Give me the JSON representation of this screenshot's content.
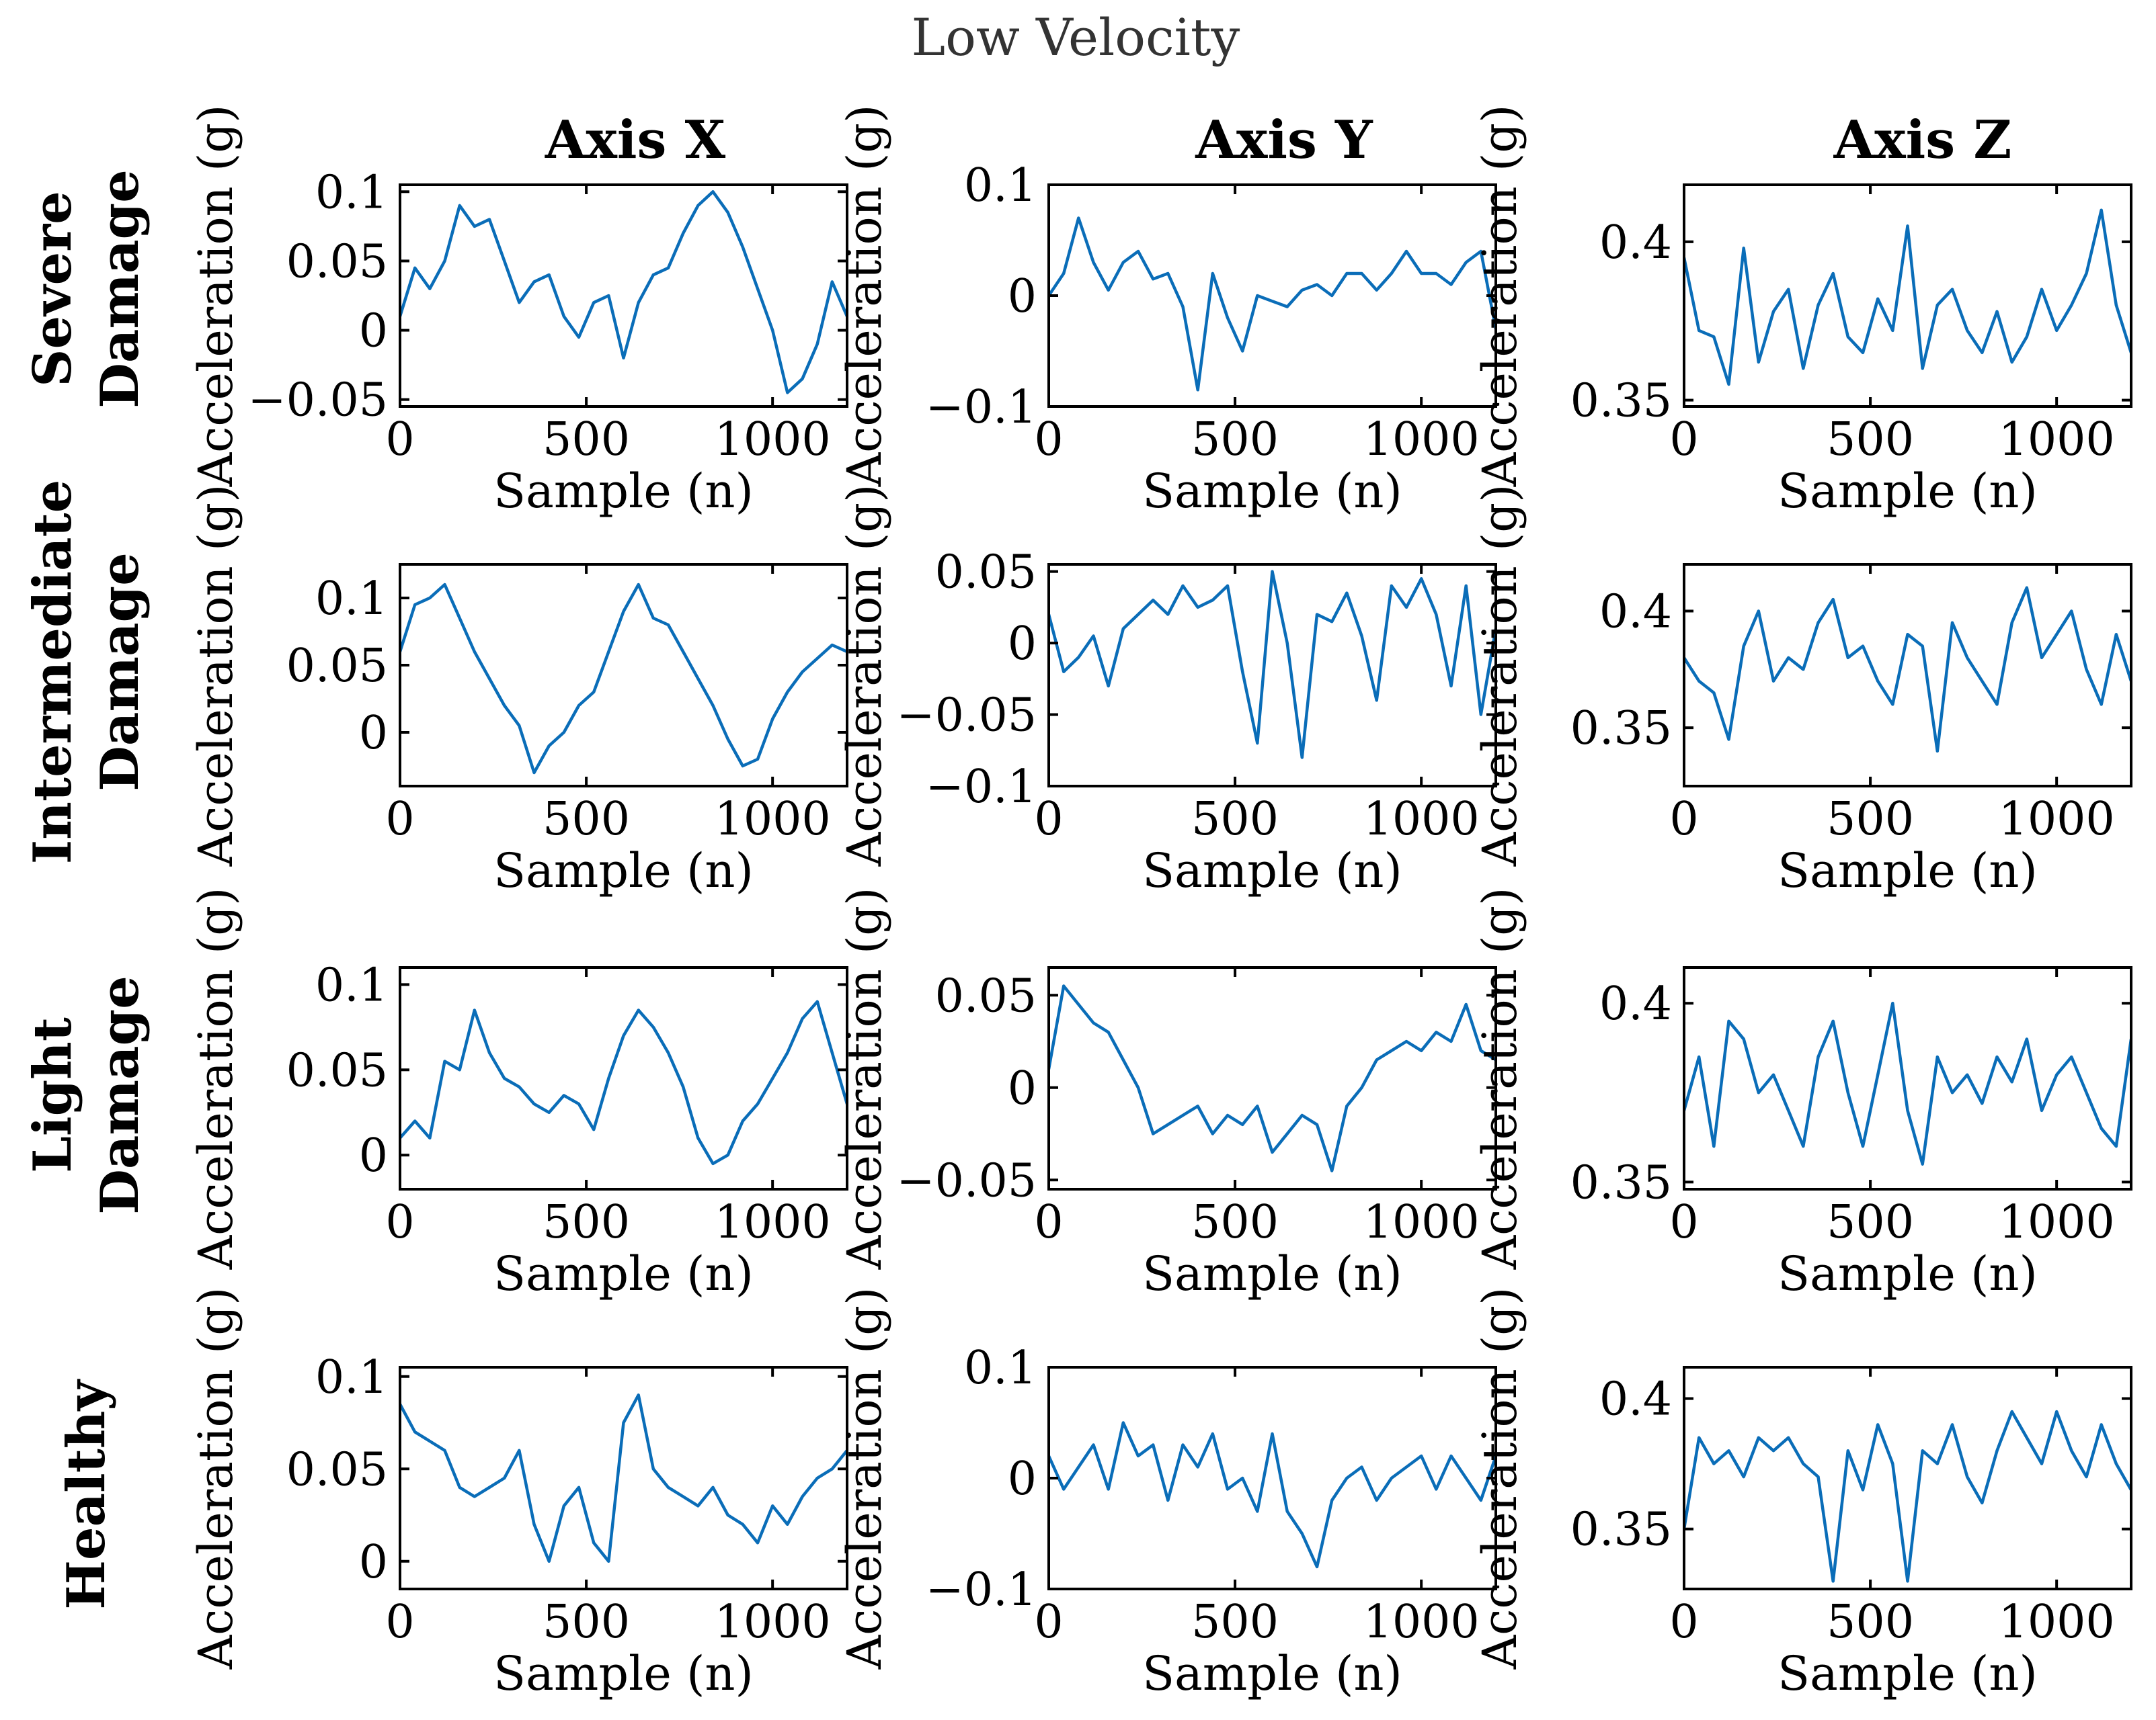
{
  "figure": {
    "title": "Low Velocity",
    "columns": [
      "Axis X",
      "Axis Y",
      "Axis Z"
    ],
    "rows": [
      {
        "line1": "Severe",
        "line2": "Damage"
      },
      {
        "line1": "Intermediate",
        "line2": "Damage"
      },
      {
        "line1": "Light",
        "line2": "Damage"
      },
      {
        "line1": "",
        "line2": "Healthy"
      }
    ],
    "series_color": "#0A6DB8"
  },
  "chart_data": [
    {
      "type": "line",
      "row": "Severe Damage",
      "column": "Axis X",
      "xlabel": "Sample (n)",
      "ylabel": "Acceleration (g)",
      "xlim": [
        0,
        1200
      ],
      "ylim": [
        -0.055,
        0.105
      ],
      "xticks": [
        0,
        500,
        1000
      ],
      "yticks": [
        -0.05,
        0,
        0.05,
        0.1
      ],
      "ytick_labels": [
        "−0.05",
        "0",
        "0.05",
        "0.1"
      ],
      "x": [
        0,
        40,
        80,
        120,
        160,
        200,
        240,
        280,
        320,
        360,
        400,
        440,
        480,
        520,
        560,
        600,
        640,
        680,
        720,
        760,
        800,
        840,
        880,
        920,
        960,
        1000,
        1040,
        1080,
        1120,
        1160,
        1200
      ],
      "values": [
        0.01,
        0.045,
        0.03,
        0.05,
        0.09,
        0.075,
        0.08,
        0.05,
        0.02,
        0.035,
        0.04,
        0.01,
        -0.005,
        0.02,
        0.025,
        -0.02,
        0.02,
        0.04,
        0.045,
        0.07,
        0.09,
        0.1,
        0.085,
        0.06,
        0.03,
        0.0,
        -0.045,
        -0.035,
        -0.01,
        0.035,
        0.01
      ]
    },
    {
      "type": "line",
      "row": "Severe Damage",
      "column": "Axis Y",
      "xlabel": "Sample (n)",
      "ylabel": "Acceleration (g)",
      "xlim": [
        0,
        1200
      ],
      "ylim": [
        -0.1,
        0.1
      ],
      "xticks": [
        0,
        500,
        1000
      ],
      "yticks": [
        -0.1,
        0,
        0.1
      ],
      "ytick_labels": [
        "−0.1",
        "0",
        "0.1"
      ],
      "x": [
        0,
        40,
        80,
        120,
        160,
        200,
        240,
        280,
        320,
        360,
        400,
        440,
        480,
        520,
        560,
        600,
        640,
        680,
        720,
        760,
        800,
        840,
        880,
        920,
        960,
        1000,
        1040,
        1080,
        1120,
        1160,
        1200
      ],
      "values": [
        0.0,
        0.02,
        0.07,
        0.03,
        0.005,
        0.03,
        0.04,
        0.015,
        0.02,
        -0.01,
        -0.085,
        0.02,
        -0.02,
        -0.05,
        0.0,
        -0.005,
        -0.01,
        0.005,
        0.01,
        0.0,
        0.02,
        0.02,
        0.005,
        0.02,
        0.04,
        0.02,
        0.02,
        0.01,
        0.03,
        0.04,
        -0.03
      ]
    },
    {
      "type": "line",
      "row": "Severe Damage",
      "column": "Axis Z",
      "xlabel": "Sample (n)",
      "ylabel": "Acceleration (g)",
      "xlim": [
        0,
        1200
      ],
      "ylim": [
        0.348,
        0.418
      ],
      "xticks": [
        0,
        500,
        1000
      ],
      "yticks": [
        0.35,
        0.4
      ],
      "ytick_labels": [
        "0.35",
        "0.4"
      ],
      "x": [
        0,
        40,
        80,
        120,
        160,
        200,
        240,
        280,
        320,
        360,
        400,
        440,
        480,
        520,
        560,
        600,
        640,
        680,
        720,
        760,
        800,
        840,
        880,
        920,
        960,
        1000,
        1040,
        1080,
        1120,
        1160,
        1200
      ],
      "values": [
        0.395,
        0.372,
        0.37,
        0.355,
        0.398,
        0.362,
        0.378,
        0.385,
        0.36,
        0.38,
        0.39,
        0.37,
        0.365,
        0.382,
        0.372,
        0.405,
        0.36,
        0.38,
        0.385,
        0.372,
        0.365,
        0.378,
        0.362,
        0.37,
        0.385,
        0.372,
        0.38,
        0.39,
        0.41,
        0.38,
        0.365
      ]
    },
    {
      "type": "line",
      "row": "Intermediate Damage",
      "column": "Axis X",
      "xlabel": "Sample (n)",
      "ylabel": "Acceleration (g)",
      "xlim": [
        0,
        1200
      ],
      "ylim": [
        -0.04,
        0.125
      ],
      "xticks": [
        0,
        500,
        1000
      ],
      "yticks": [
        0,
        0.05,
        0.1
      ],
      "ytick_labels": [
        "0",
        "0.05",
        "0.1"
      ],
      "x": [
        0,
        40,
        80,
        120,
        160,
        200,
        240,
        280,
        320,
        360,
        400,
        440,
        480,
        520,
        560,
        600,
        640,
        680,
        720,
        760,
        800,
        840,
        880,
        920,
        960,
        1000,
        1040,
        1080,
        1120,
        1160,
        1200
      ],
      "values": [
        0.06,
        0.095,
        0.1,
        0.11,
        0.085,
        0.06,
        0.04,
        0.02,
        0.005,
        -0.03,
        -0.01,
        0.0,
        0.02,
        0.03,
        0.06,
        0.09,
        0.11,
        0.085,
        0.08,
        0.06,
        0.04,
        0.02,
        -0.005,
        -0.025,
        -0.02,
        0.01,
        0.03,
        0.045,
        0.055,
        0.065,
        0.06
      ]
    },
    {
      "type": "line",
      "row": "Intermediate Damage",
      "column": "Axis Y",
      "xlabel": "Sample (n)",
      "ylabel": "Acceleration (g)",
      "xlim": [
        0,
        1200
      ],
      "ylim": [
        -0.1,
        0.055
      ],
      "xticks": [
        0,
        500,
        1000
      ],
      "yticks": [
        -0.1,
        -0.05,
        0,
        0.05
      ],
      "ytick_labels": [
        "−0.1",
        "−0.05",
        "0",
        "0.05"
      ],
      "x": [
        0,
        40,
        80,
        120,
        160,
        200,
        240,
        280,
        320,
        360,
        400,
        440,
        480,
        520,
        560,
        600,
        640,
        680,
        720,
        760,
        800,
        840,
        880,
        920,
        960,
        1000,
        1040,
        1080,
        1120,
        1160,
        1200
      ],
      "values": [
        0.02,
        -0.02,
        -0.01,
        0.005,
        -0.03,
        0.01,
        0.02,
        0.03,
        0.02,
        0.04,
        0.025,
        0.03,
        0.04,
        -0.02,
        -0.07,
        0.05,
        0.0,
        -0.08,
        0.02,
        0.015,
        0.035,
        0.005,
        -0.04,
        0.04,
        0.025,
        0.045,
        0.02,
        -0.03,
        0.04,
        -0.05,
        0.01
      ]
    },
    {
      "type": "line",
      "row": "Intermediate Damage",
      "column": "Axis Z",
      "xlabel": "Sample (n)",
      "ylabel": "Acceleration (g)",
      "xlim": [
        0,
        1200
      ],
      "ylim": [
        0.325,
        0.42
      ],
      "xticks": [
        0,
        500,
        1000
      ],
      "yticks": [
        0.35,
        0.4
      ],
      "ytick_labels": [
        "0.35",
        "0.4"
      ],
      "x": [
        0,
        40,
        80,
        120,
        160,
        200,
        240,
        280,
        320,
        360,
        400,
        440,
        480,
        520,
        560,
        600,
        640,
        680,
        720,
        760,
        800,
        840,
        880,
        920,
        960,
        1000,
        1040,
        1080,
        1120,
        1160,
        1200
      ],
      "values": [
        0.38,
        0.37,
        0.365,
        0.345,
        0.385,
        0.4,
        0.37,
        0.38,
        0.375,
        0.395,
        0.405,
        0.38,
        0.385,
        0.37,
        0.36,
        0.39,
        0.385,
        0.34,
        0.395,
        0.38,
        0.37,
        0.36,
        0.395,
        0.41,
        0.38,
        0.39,
        0.4,
        0.375,
        0.36,
        0.39,
        0.37
      ]
    },
    {
      "type": "line",
      "row": "Light Damage",
      "column": "Axis X",
      "xlabel": "Sample (n)",
      "ylabel": "Acceleration (g)",
      "xlim": [
        0,
        1200
      ],
      "ylim": [
        -0.02,
        0.11
      ],
      "xticks": [
        0,
        500,
        1000
      ],
      "yticks": [
        0,
        0.05,
        0.1
      ],
      "ytick_labels": [
        "0",
        "0.05",
        "0.1"
      ],
      "x": [
        0,
        40,
        80,
        120,
        160,
        200,
        240,
        280,
        320,
        360,
        400,
        440,
        480,
        520,
        560,
        600,
        640,
        680,
        720,
        760,
        800,
        840,
        880,
        920,
        960,
        1000,
        1040,
        1080,
        1120,
        1160,
        1200
      ],
      "values": [
        0.01,
        0.02,
        0.01,
        0.055,
        0.05,
        0.085,
        0.06,
        0.045,
        0.04,
        0.03,
        0.025,
        0.035,
        0.03,
        0.015,
        0.045,
        0.07,
        0.085,
        0.075,
        0.06,
        0.04,
        0.01,
        -0.005,
        0.0,
        0.02,
        0.03,
        0.045,
        0.06,
        0.08,
        0.09,
        0.06,
        0.03
      ]
    },
    {
      "type": "line",
      "row": "Light Damage",
      "column": "Axis Y",
      "xlabel": "Sample (n)",
      "ylabel": "Acceleration (g)",
      "xlim": [
        0,
        1200
      ],
      "ylim": [
        -0.055,
        0.065
      ],
      "xticks": [
        0,
        500,
        1000
      ],
      "yticks": [
        -0.05,
        0,
        0.05
      ],
      "ytick_labels": [
        "−0.05",
        "0",
        "0.05"
      ],
      "x": [
        0,
        40,
        80,
        120,
        160,
        200,
        240,
        280,
        320,
        360,
        400,
        440,
        480,
        520,
        560,
        600,
        640,
        680,
        720,
        760,
        800,
        840,
        880,
        920,
        960,
        1000,
        1040,
        1080,
        1120,
        1160,
        1200
      ],
      "values": [
        0.01,
        0.055,
        0.045,
        0.035,
        0.03,
        0.015,
        0.0,
        -0.025,
        -0.02,
        -0.015,
        -0.01,
        -0.025,
        -0.015,
        -0.02,
        -0.01,
        -0.035,
        -0.025,
        -0.015,
        -0.02,
        -0.045,
        -0.01,
        0.0,
        0.015,
        0.02,
        0.025,
        0.02,
        0.03,
        0.025,
        0.045,
        0.02,
        0.015
      ]
    },
    {
      "type": "line",
      "row": "Light Damage",
      "column": "Axis Z",
      "xlabel": "Sample (n)",
      "ylabel": "Acceleration (g)",
      "xlim": [
        0,
        1200
      ],
      "ylim": [
        0.348,
        0.41
      ],
      "xticks": [
        0,
        500,
        1000
      ],
      "yticks": [
        0.35,
        0.4
      ],
      "ytick_labels": [
        "0.35",
        "0.4"
      ],
      "x": [
        0,
        40,
        80,
        120,
        160,
        200,
        240,
        280,
        320,
        360,
        400,
        440,
        480,
        520,
        560,
        600,
        640,
        680,
        720,
        760,
        800,
        840,
        880,
        920,
        960,
        1000,
        1040,
        1080,
        1120,
        1160,
        1200
      ],
      "values": [
        0.37,
        0.385,
        0.36,
        0.395,
        0.39,
        0.375,
        0.38,
        0.37,
        0.36,
        0.385,
        0.395,
        0.375,
        0.36,
        0.38,
        0.4,
        0.37,
        0.355,
        0.385,
        0.375,
        0.38,
        0.372,
        0.385,
        0.378,
        0.39,
        0.37,
        0.38,
        0.385,
        0.375,
        0.365,
        0.36,
        0.39
      ]
    },
    {
      "type": "line",
      "row": "Healthy",
      "column": "Axis X",
      "xlabel": "Sample (n)",
      "ylabel": "Acceleration (g)",
      "xlim": [
        0,
        1200
      ],
      "ylim": [
        -0.015,
        0.105
      ],
      "xticks": [
        0,
        500,
        1000
      ],
      "yticks": [
        0,
        0.05,
        0.1
      ],
      "ytick_labels": [
        "0",
        "0.05",
        "0.1"
      ],
      "x": [
        0,
        40,
        80,
        120,
        160,
        200,
        240,
        280,
        320,
        360,
        400,
        440,
        480,
        520,
        560,
        600,
        640,
        680,
        720,
        760,
        800,
        840,
        880,
        920,
        960,
        1000,
        1040,
        1080,
        1120,
        1160,
        1200
      ],
      "values": [
        0.085,
        0.07,
        0.065,
        0.06,
        0.04,
        0.035,
        0.04,
        0.045,
        0.06,
        0.02,
        0.0,
        0.03,
        0.04,
        0.01,
        0.0,
        0.075,
        0.09,
        0.05,
        0.04,
        0.035,
        0.03,
        0.04,
        0.025,
        0.02,
        0.01,
        0.03,
        0.02,
        0.035,
        0.045,
        0.05,
        0.06
      ]
    },
    {
      "type": "line",
      "row": "Healthy",
      "column": "Axis Y",
      "xlabel": "Sample (n)",
      "ylabel": "Acceleration (g)",
      "xlim": [
        0,
        1200
      ],
      "ylim": [
        -0.1,
        0.1
      ],
      "xticks": [
        0,
        500,
        1000
      ],
      "yticks": [
        -0.1,
        0,
        0.1
      ],
      "ytick_labels": [
        "−0.1",
        "0",
        "0.1"
      ],
      "x": [
        0,
        40,
        80,
        120,
        160,
        200,
        240,
        280,
        320,
        360,
        400,
        440,
        480,
        520,
        560,
        600,
        640,
        680,
        720,
        760,
        800,
        840,
        880,
        920,
        960,
        1000,
        1040,
        1080,
        1120,
        1160,
        1200
      ],
      "values": [
        0.02,
        -0.01,
        0.01,
        0.03,
        -0.01,
        0.05,
        0.02,
        0.03,
        -0.02,
        0.03,
        0.01,
        0.04,
        -0.01,
        0.0,
        -0.03,
        0.04,
        -0.03,
        -0.05,
        -0.08,
        -0.02,
        0.0,
        0.01,
        -0.02,
        0.0,
        0.01,
        0.02,
        -0.01,
        0.02,
        0.0,
        -0.02,
        0.02
      ]
    },
    {
      "type": "line",
      "row": "Healthy",
      "column": "Axis Z",
      "xlabel": "Sample (n)",
      "ylabel": "Acceleration (g)",
      "xlim": [
        0,
        1200
      ],
      "ylim": [
        0.327,
        0.412
      ],
      "xticks": [
        0,
        500,
        1000
      ],
      "yticks": [
        0.35,
        0.4
      ],
      "ytick_labels": [
        "0.35",
        "0.4"
      ],
      "x": [
        0,
        40,
        80,
        120,
        160,
        200,
        240,
        280,
        320,
        360,
        400,
        440,
        480,
        520,
        560,
        600,
        640,
        680,
        720,
        760,
        800,
        840,
        880,
        920,
        960,
        1000,
        1040,
        1080,
        1120,
        1160,
        1200
      ],
      "values": [
        0.35,
        0.385,
        0.375,
        0.38,
        0.37,
        0.385,
        0.38,
        0.385,
        0.375,
        0.37,
        0.33,
        0.38,
        0.365,
        0.39,
        0.375,
        0.33,
        0.38,
        0.375,
        0.39,
        0.37,
        0.36,
        0.38,
        0.395,
        0.385,
        0.375,
        0.395,
        0.38,
        0.37,
        0.39,
        0.375,
        0.365
      ]
    }
  ]
}
